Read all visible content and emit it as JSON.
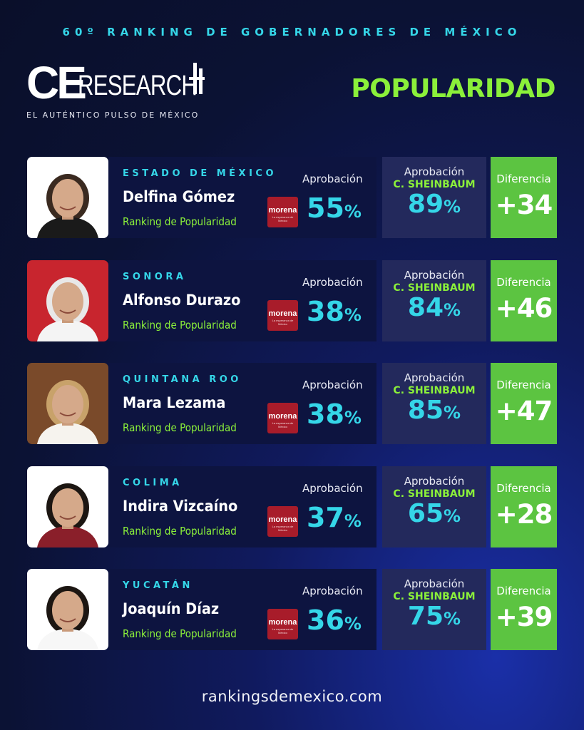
{
  "header": {
    "top_title": "60º RANKING DE GOBERNADORES DE MÉXICO",
    "logo_ce": "CE",
    "logo_research": "RESEARCH",
    "tagline": "EL AUTÉNTICO PULSO DE MÉXICO",
    "section_title": "POPULARIDAD"
  },
  "labels": {
    "aprobacion": "Aprobación",
    "sheinbaum": "C. SHEINBAUM",
    "diferencia": "Diferencia",
    "ranking": "Ranking de Popularidad",
    "pct": "%",
    "party": "morena",
    "party_sub": "La esperanza de México"
  },
  "colors": {
    "accent_cyan": "#35d6e8",
    "accent_green": "#8bf03a",
    "diff_green": "#5cc441",
    "morena_red": "#a81c2a"
  },
  "governors": [
    {
      "state": "ESTADO DE MÉXICO",
      "name": "Delfina Gómez",
      "approval": "55",
      "sheinbaum": "89",
      "difference": "+34",
      "photo_bg": "#ffffff",
      "shirt": "#1a1a1a",
      "hair": "#3a2a20"
    },
    {
      "state": "SONORA",
      "name": "Alfonso Durazo",
      "approval": "38",
      "sheinbaum": "84",
      "difference": "+46",
      "photo_bg": "#c8252e",
      "shirt": "#f4f4f4",
      "hair": "#e8e8e8"
    },
    {
      "state": "QUINTANA ROO",
      "name": "Mara Lezama",
      "approval": "38",
      "sheinbaum": "85",
      "difference": "+47",
      "photo_bg": "#7a4a2a",
      "shirt": "#f6f3ee",
      "hair": "#c8a26a"
    },
    {
      "state": "COLIMA",
      "name": "Indira Vizcaíno",
      "approval": "37",
      "sheinbaum": "65",
      "difference": "+28",
      "photo_bg": "#ffffff",
      "shirt": "#8a1f2a",
      "hair": "#1c1612"
    },
    {
      "state": "YUCATÁN",
      "name": "Joaquín Díaz",
      "approval": "36",
      "sheinbaum": "75",
      "difference": "+39",
      "photo_bg": "#ffffff",
      "shirt": "#f7f7f7",
      "hair": "#1c1612"
    }
  ],
  "footer": {
    "url": "rankingsdemexico.com"
  }
}
